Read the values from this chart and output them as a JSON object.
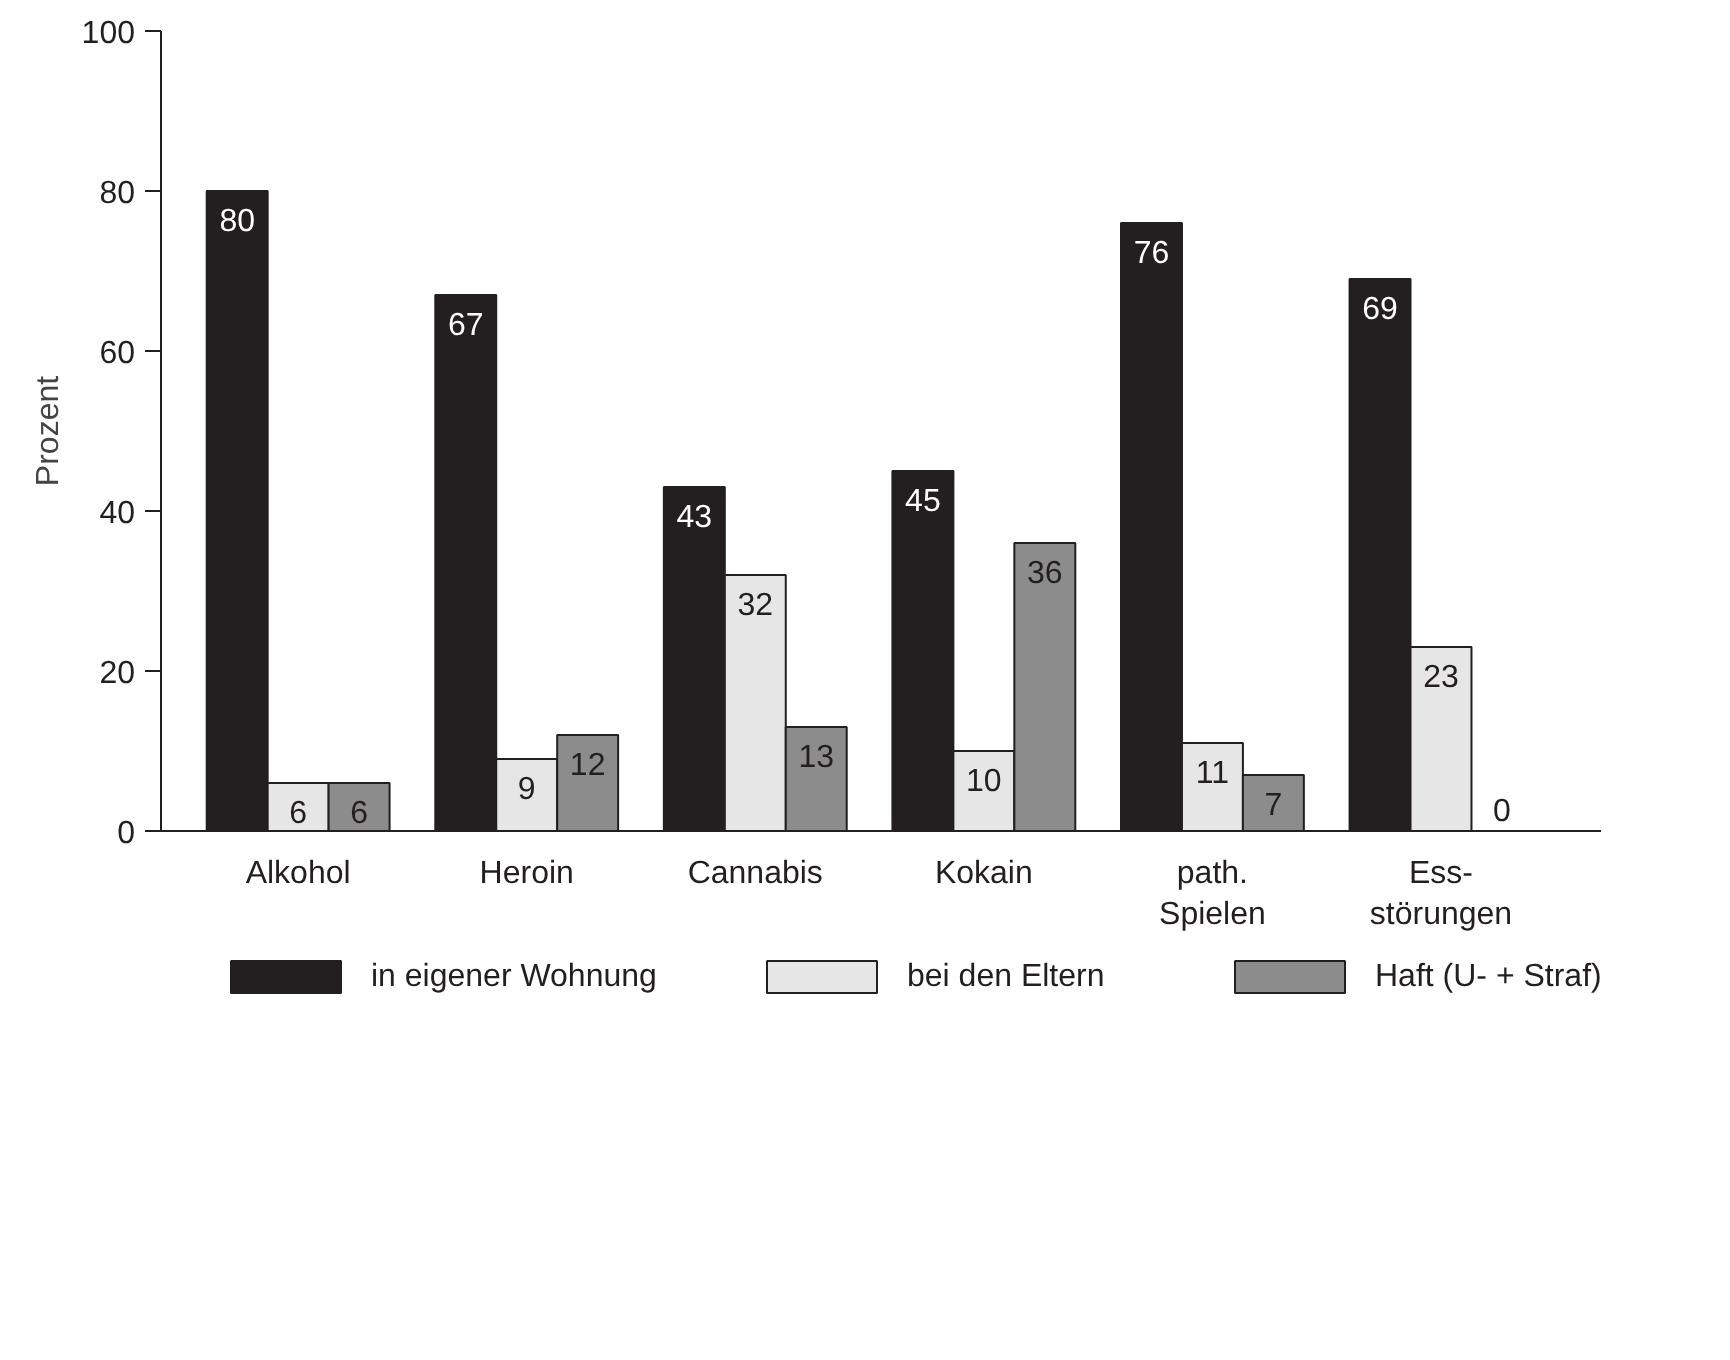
{
  "chart_data": {
    "type": "bar",
    "ylabel": "Prozent",
    "categories": [
      "Alkohol",
      "Heroin",
      "Cannabis",
      "Kokain",
      "path.\nSpielen",
      "Ess-\nstörungen"
    ],
    "series": [
      {
        "name": "in eigener Wohnung",
        "color": "#231f20",
        "values": [
          80,
          67,
          43,
          45,
          76,
          69
        ]
      },
      {
        "name": "bei den Eltern",
        "color": "#e6e6e6",
        "values": [
          6,
          9,
          32,
          10,
          11,
          23
        ]
      },
      {
        "name": "Haft (U- + Straf)",
        "color": "#8c8c8c",
        "values": [
          6,
          12,
          13,
          36,
          7,
          0
        ]
      }
    ],
    "ylim": [
      0,
      100
    ],
    "yticks": [
      0,
      20,
      40,
      60,
      80,
      100
    ],
    "grid": false,
    "legend": "bottom",
    "data_labels": true
  }
}
